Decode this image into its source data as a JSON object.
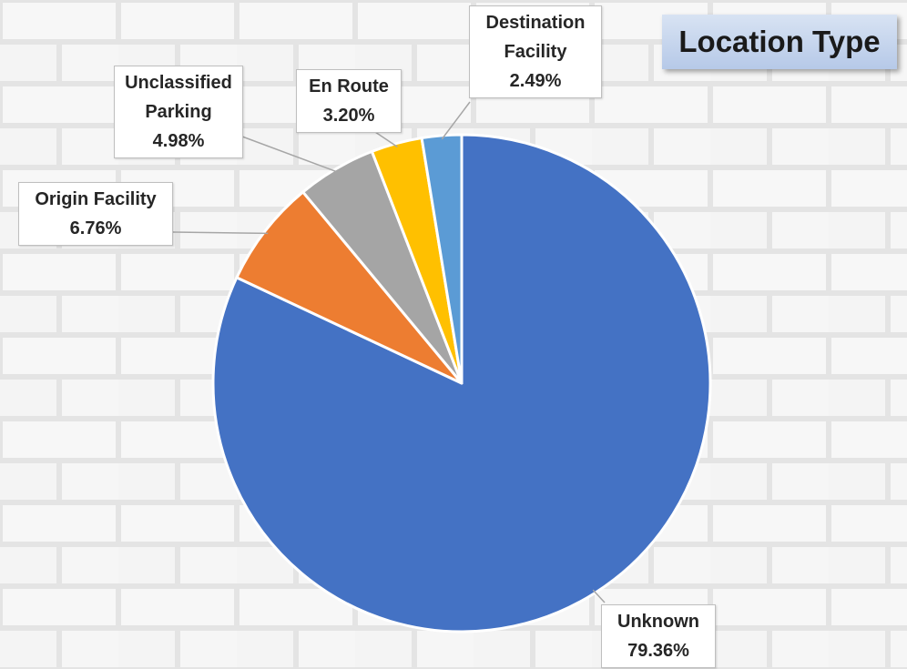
{
  "chart_data": {
    "type": "pie",
    "title": "Location Type",
    "categories": [
      "Unknown",
      "Origin Facility",
      "Unclassified Parking",
      "En Route",
      "Destination Facility"
    ],
    "values": [
      79.36,
      6.76,
      4.98,
      3.2,
      2.49
    ],
    "value_labels": [
      "79.36%",
      "6.76%",
      "4.98%",
      "3.20%",
      "2.49%"
    ],
    "colors": [
      "#4472c4",
      "#ed7d31",
      "#a5a5a5",
      "#ffc000",
      "#5b9bd5"
    ]
  }
}
